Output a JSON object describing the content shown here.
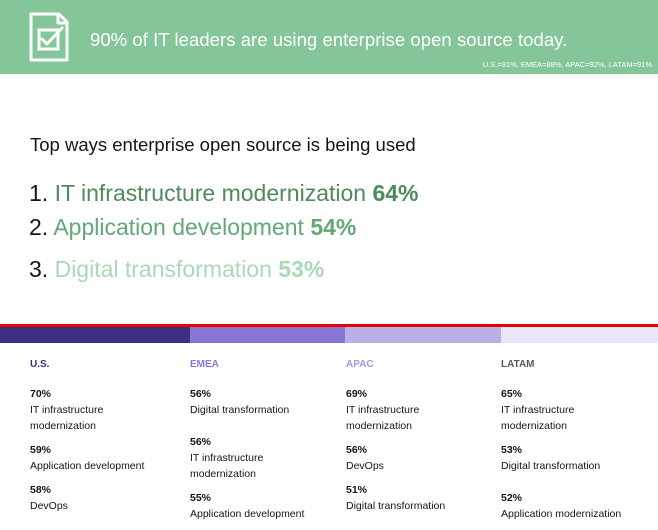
{
  "banner": {
    "title": "90% of IT leaders are using enterprise open source today.",
    "subtitle": "U.S.=91%, EMEA=88%, APAC=92%, LATAM=91%",
    "icon": "checklist-document-icon",
    "color": "#84c59a"
  },
  "heading": "Top ways enterprise open source is being used",
  "top_uses": [
    {
      "num": "1.",
      "label": "IT infrastructure modernization",
      "pct": "64%"
    },
    {
      "num": "2.",
      "label": "Application development",
      "pct": "54%"
    },
    {
      "num": "3.",
      "label": "Digital transformation",
      "pct": "53%"
    }
  ],
  "regions": [
    {
      "name": "U.S.",
      "color": "#3c2f80",
      "items": [
        {
          "value": "70%",
          "label": "IT infrastructure modernization"
        },
        {
          "value": "59%",
          "label": "Application development"
        },
        {
          "value": "58%",
          "label": "DevOps"
        }
      ]
    },
    {
      "name": "EMEA",
      "color": "#8876d6",
      "items": [
        {
          "value": "56%",
          "label": "Digital transformation"
        },
        {
          "value": "56%",
          "label": "IT infrastructure modernization"
        },
        {
          "value": "55%",
          "label": "Application development"
        }
      ]
    },
    {
      "name": "APAC",
      "color": "#b9b0e8",
      "items": [
        {
          "value": "69%",
          "label": "IT infrastructure modernization"
        },
        {
          "value": "56%",
          "label": "DevOps"
        },
        {
          "value": "51%",
          "label": "Digital transformation"
        }
      ]
    },
    {
      "name": "LATAM",
      "color": "#e9e6f9",
      "items": [
        {
          "value": "65%",
          "label": "IT infrastructure modernization"
        },
        {
          "value": "53%",
          "label": "Digital transformation"
        },
        {
          "value": "52%",
          "label": "Application modernization"
        }
      ]
    }
  ]
}
